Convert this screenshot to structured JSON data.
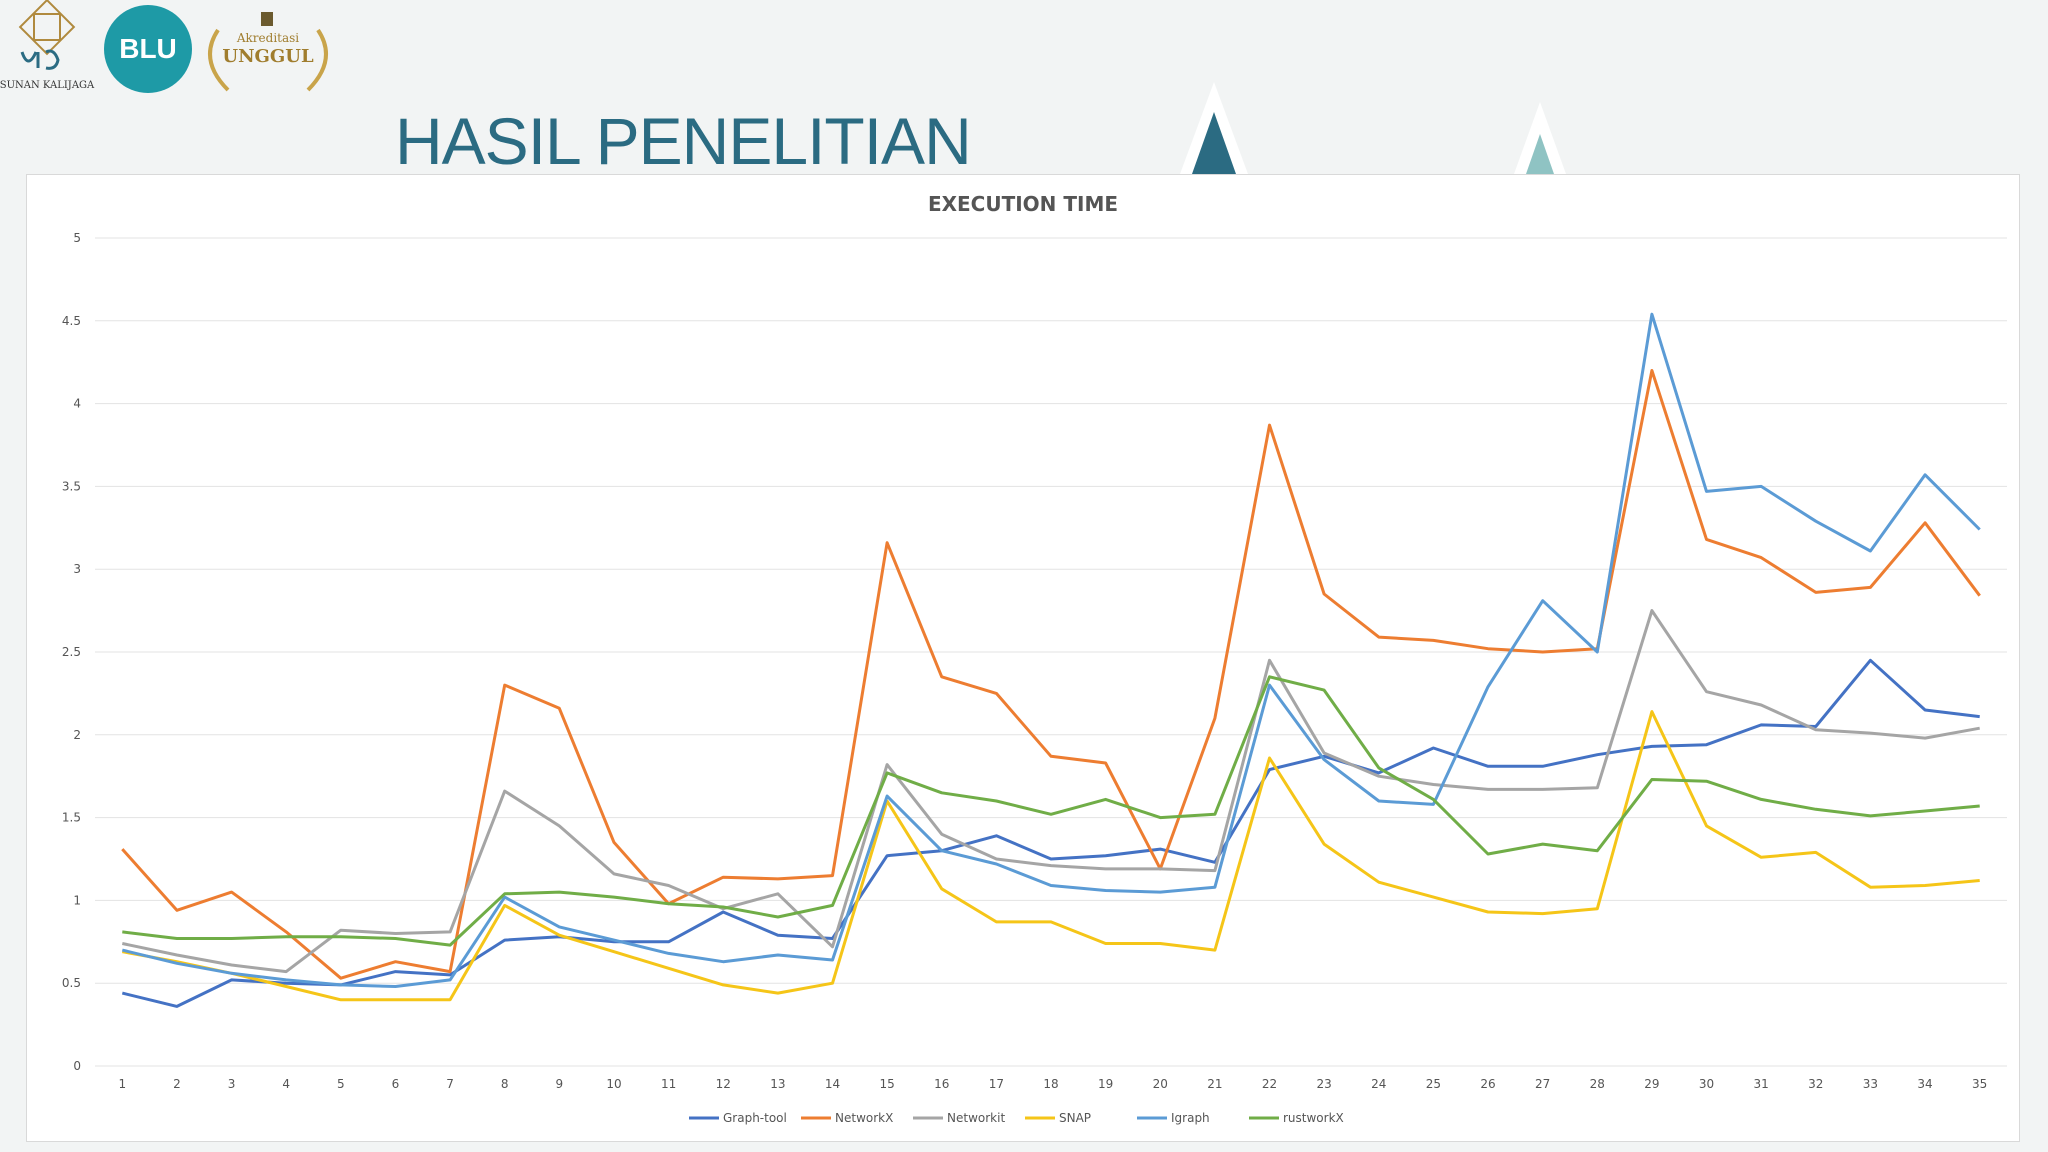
{
  "header": {
    "title": "HASIL PENELITIAN",
    "logo_uin_text": "SUNAN KALIJAGA",
    "logo_blu_text": "BLU",
    "logo_akred_top": "Akreditasi",
    "logo_akred_main": "UNGGUL"
  },
  "colors": {
    "title": "#2b6b82",
    "deco_dark": "#2b6b82",
    "deco_light": "#8fc3c3"
  },
  "chart_data": {
    "type": "line",
    "title": "EXECUTION TIME",
    "xlabel": "",
    "ylabel": "",
    "ylim": [
      0,
      5
    ],
    "yticks": [
      "0",
      "0.5",
      "1",
      "1.5",
      "2",
      "2.5",
      "3",
      "3.5",
      "4",
      "4.5",
      "5"
    ],
    "grid": true,
    "legend_position": "bottom",
    "x": [
      "1",
      "2",
      "3",
      "4",
      "5",
      "6",
      "7",
      "8",
      "9",
      "10",
      "11",
      "12",
      "13",
      "14",
      "15",
      "16",
      "17",
      "18",
      "19",
      "20",
      "21",
      "22",
      "23",
      "24",
      "25",
      "26",
      "27",
      "28",
      "29",
      "30",
      "31",
      "32",
      "33",
      "34",
      "35"
    ],
    "series": [
      {
        "name": "Graph-tool",
        "color": "#4472c4",
        "values": [
          0.44,
          0.36,
          0.52,
          0.5,
          0.49,
          0.57,
          0.55,
          0.76,
          0.78,
          0.75,
          0.75,
          0.93,
          0.79,
          0.77,
          1.27,
          1.3,
          1.39,
          1.25,
          1.27,
          1.31,
          1.23,
          1.79,
          1.87,
          1.77,
          1.92,
          1.81,
          1.81,
          1.88,
          1.93,
          1.94,
          2.06,
          2.05,
          2.45,
          2.15,
          2.11
        ]
      },
      {
        "name": "NetworkX",
        "color": "#ed7d31",
        "values": [
          1.31,
          0.94,
          1.05,
          0.81,
          0.53,
          0.63,
          0.57,
          2.3,
          2.16,
          1.35,
          0.98,
          1.14,
          1.13,
          1.15,
          3.16,
          2.35,
          2.25,
          1.87,
          1.83,
          1.19,
          2.1,
          3.87,
          2.85,
          2.59,
          2.57,
          2.52,
          2.5,
          2.52,
          4.2,
          3.18,
          3.07,
          2.86,
          2.89,
          3.28,
          2.84
        ]
      },
      {
        "name": "Networkit",
        "color": "#a5a5a5",
        "values": [
          0.74,
          0.67,
          0.61,
          0.57,
          0.82,
          0.8,
          0.81,
          1.66,
          1.45,
          1.16,
          1.09,
          0.95,
          1.04,
          0.72,
          1.82,
          1.4,
          1.25,
          1.21,
          1.19,
          1.19,
          1.18,
          2.45,
          1.89,
          1.75,
          1.7,
          1.67,
          1.67,
          1.68,
          2.75,
          2.26,
          2.18,
          2.03,
          2.01,
          1.98,
          2.04
        ]
      },
      {
        "name": "SNAP",
        "color": "#f5c518",
        "values": [
          0.69,
          0.63,
          0.56,
          0.48,
          0.4,
          0.4,
          0.4,
          0.97,
          0.79,
          0.69,
          0.59,
          0.49,
          0.44,
          0.5,
          1.6,
          1.07,
          0.87,
          0.87,
          0.74,
          0.74,
          0.7,
          1.86,
          1.34,
          1.11,
          1.02,
          0.93,
          0.92,
          0.95,
          2.14,
          1.45,
          1.26,
          1.29,
          1.08,
          1.09,
          1.12
        ]
      },
      {
        "name": "Igraph",
        "color": "#5b9bd5",
        "values": [
          0.7,
          0.62,
          0.56,
          0.52,
          0.49,
          0.48,
          0.52,
          1.02,
          0.84,
          0.76,
          0.68,
          0.63,
          0.67,
          0.64,
          1.63,
          1.3,
          1.22,
          1.09,
          1.06,
          1.05,
          1.08,
          2.3,
          1.85,
          1.6,
          1.58,
          2.29,
          2.81,
          2.5,
          4.54,
          3.47,
          3.5,
          3.29,
          3.11,
          3.57,
          3.24
        ]
      },
      {
        "name": "rustworkX",
        "color": "#70ad47",
        "values": [
          0.81,
          0.77,
          0.77,
          0.78,
          0.78,
          0.77,
          0.73,
          1.04,
          1.05,
          1.02,
          0.98,
          0.96,
          0.9,
          0.97,
          1.77,
          1.65,
          1.6,
          1.52,
          1.61,
          1.5,
          1.52,
          2.35,
          2.27,
          1.8,
          1.61,
          1.28,
          1.34,
          1.3,
          1.73,
          1.72,
          1.61,
          1.55,
          1.51,
          1.54,
          1.57
        ]
      }
    ]
  }
}
